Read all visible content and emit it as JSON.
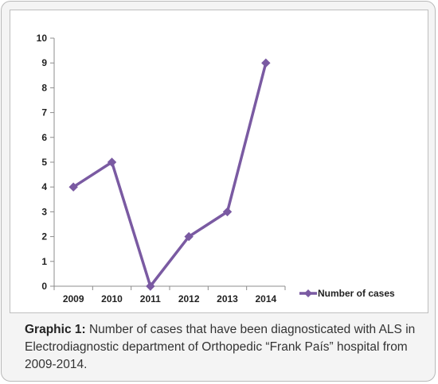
{
  "chart_data": {
    "type": "line",
    "categories": [
      "2009",
      "2010",
      "2011",
      "2012",
      "2013",
      "2014"
    ],
    "series": [
      {
        "name": "Number of cases",
        "values": [
          4,
          5,
          0,
          2,
          3,
          9
        ]
      }
    ],
    "xlabel": "",
    "ylabel": "",
    "ylim": [
      0,
      10
    ],
    "yticks": [
      "0",
      "1",
      "2",
      "3",
      "4",
      "5",
      "6",
      "7",
      "8",
      "9",
      "10"
    ],
    "grid": false,
    "legend_position": "right",
    "series_color": "#7a5aa2",
    "marker": "diamond"
  },
  "caption": {
    "label": "Graphic 1:",
    "text": " Number of cases that have been diagnosticated with ALS in Electrodiagnostic department of Orthopedic “Frank País” hospital from 2009-2014."
  }
}
